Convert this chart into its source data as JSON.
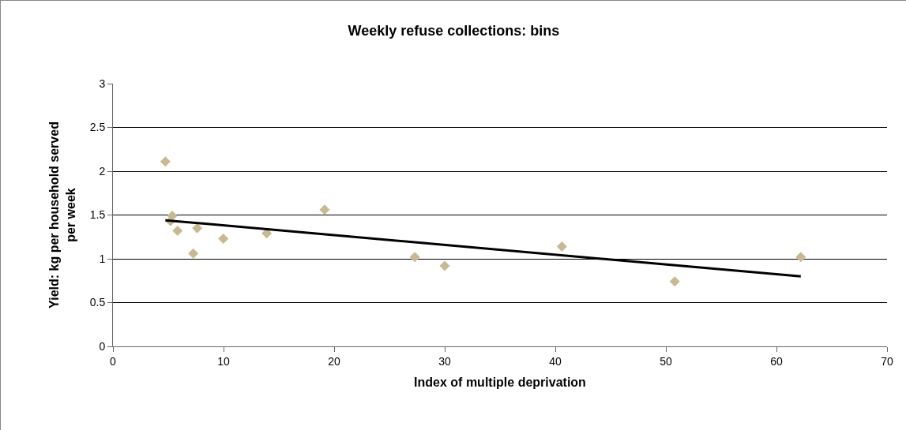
{
  "chart_data": {
    "type": "scatter",
    "title": "Weekly refuse collections: bins",
    "xlabel": "Index of multiple deprivation",
    "ylabel": "Yield: kg per household served\nper week",
    "x": [
      4.74,
      5.2,
      5.36,
      5.84,
      7.26,
      7.62,
      9.98,
      13.9,
      19.14,
      27.3,
      30.0,
      40.6,
      50.8,
      62.2
    ],
    "series": [
      {
        "color": "#c8b993",
        "marker": "diamond",
        "values": [
          2.11,
          1.43,
          1.49,
          1.32,
          1.06,
          1.35,
          1.23,
          1.29,
          1.56,
          1.02,
          0.92,
          1.14,
          0.74,
          1.02
        ]
      },
      {
        "type": "line",
        "color": "#000000",
        "marker": "none",
        "x": [
          4.74,
          62.2
        ],
        "values": [
          1.44,
          0.8
        ]
      }
    ],
    "xlim": [
      0,
      70
    ],
    "xticks": [
      0,
      10,
      20,
      30,
      40,
      50,
      60,
      70
    ],
    "ylim": [
      0,
      3
    ],
    "yticks": [
      0,
      0.5,
      1,
      1.5,
      2,
      2.5,
      3
    ],
    "grid": "y"
  }
}
